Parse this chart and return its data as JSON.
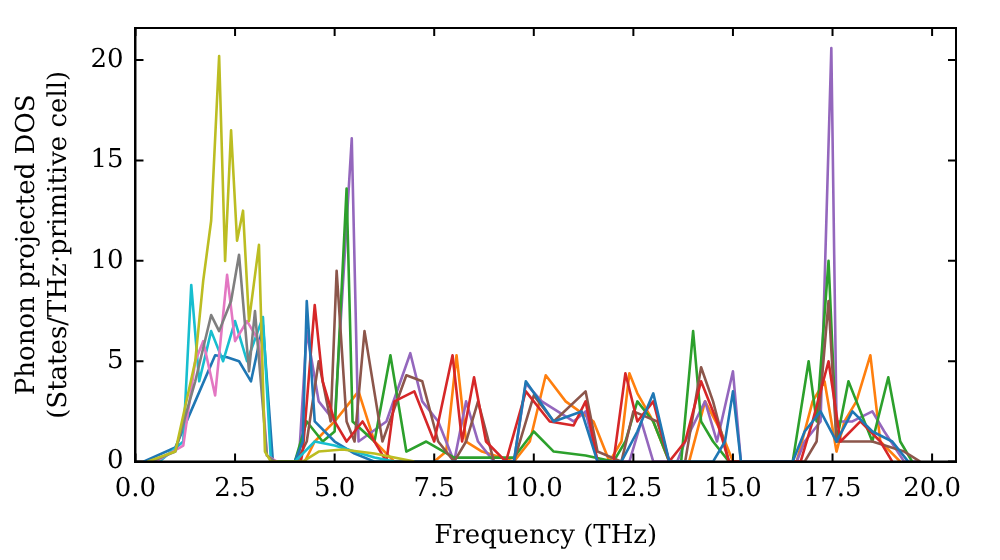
{
  "chart_data": {
    "type": "line",
    "xlabel": "Frequency (THz)",
    "ylabel": "Phonon projected DOS\n(States/THz·primitive cell)",
    "xlim": [
      0,
      20.6
    ],
    "ylim": [
      0,
      21.6
    ],
    "xticks": [
      {
        "value": 0,
        "label": "0.0"
      },
      {
        "value": 2.5,
        "label": "2.5"
      },
      {
        "value": 5,
        "label": "5.0"
      },
      {
        "value": 7.5,
        "label": "7.5"
      },
      {
        "value": 10,
        "label": "10.0"
      },
      {
        "value": 12.5,
        "label": "12.5"
      },
      {
        "value": 15,
        "label": "15.0"
      },
      {
        "value": 17.5,
        "label": "17.5"
      },
      {
        "value": 20,
        "label": "20.0"
      }
    ],
    "yticks": [
      0,
      5,
      10,
      15,
      20
    ],
    "grid": false,
    "legend": false,
    "series": [
      {
        "color": "#bcbd22",
        "x": [
          0.3,
          1.0,
          1.5,
          1.7,
          1.9,
          2.1,
          2.25,
          2.4,
          2.55,
          2.7,
          2.85,
          3.1,
          3.25,
          3.4,
          4.2,
          4.6,
          5.2,
          6.0,
          7.0
        ],
        "values": [
          0,
          0.5,
          5,
          9,
          12,
          20.2,
          10,
          16.5,
          11,
          12.5,
          7,
          10.8,
          0.5,
          0,
          0,
          0.5,
          0.6,
          0.4,
          0
        ]
      },
      {
        "color": "#7f7f7f",
        "x": [
          0.4,
          1.0,
          1.5,
          1.9,
          2.1,
          2.4,
          2.6,
          2.85,
          3.0,
          3.3,
          3.5
        ],
        "values": [
          0,
          0.5,
          4,
          7.3,
          6.5,
          8,
          10.3,
          4.5,
          7.5,
          0.3,
          0
        ]
      },
      {
        "color": "#e377c2",
        "x": [
          0.5,
          1.2,
          1.5,
          1.7,
          2.0,
          2.3,
          2.5,
          2.8,
          3.1,
          3.3,
          3.55
        ],
        "values": [
          0,
          0.8,
          5,
          6,
          3.3,
          9.3,
          6,
          7,
          6,
          0.3,
          0
        ]
      },
      {
        "color": "#17becf",
        "x": [
          0.6,
          1.2,
          1.4,
          1.6,
          1.9,
          2.2,
          2.5,
          2.8,
          3.2,
          3.4,
          4.0,
          4.5,
          5.0,
          5.5,
          6.0,
          6.5
        ],
        "values": [
          0,
          1,
          8.8,
          4,
          6.5,
          5,
          7,
          5,
          7.2,
          0,
          0,
          1,
          0.8,
          0.5,
          0.2,
          0
        ]
      },
      {
        "color": "#1f77b4",
        "x": [
          0.2,
          1.0,
          1.5,
          2.0,
          2.3,
          2.6,
          2.9,
          3.2,
          3.45,
          4.0,
          4.2,
          4.3,
          4.5,
          5.0,
          5.5,
          6.0,
          9.5,
          9.8,
          10.5,
          11.2,
          11.6,
          12.2,
          12.6,
          13.0,
          13.4,
          14.5,
          14.8,
          15.0,
          15.2,
          16.5,
          16.8,
          17.2,
          17.6,
          18.0,
          18.5,
          19.0,
          19.4
        ],
        "values": [
          0,
          0.7,
          3,
          5.3,
          5.2,
          5,
          4,
          6.8,
          0,
          0,
          1,
          8,
          2,
          1,
          0.4,
          0,
          0,
          4,
          2,
          2.5,
          0,
          0,
          1.5,
          3.4,
          0,
          0,
          1,
          3.5,
          0,
          0,
          1.5,
          2.5,
          1,
          2.5,
          1.5,
          1,
          0
        ]
      },
      {
        "color": "#d62728",
        "x": [
          4.15,
          4.2,
          4.5,
          4.7,
          5.0,
          5.3,
          5.7,
          6.0,
          6.3,
          6.5,
          7.0,
          7.5,
          7.96,
          8.2,
          8.5,
          8.8,
          9.3,
          9.8,
          10.4,
          11.0,
          11.3,
          11.6,
          12.0,
          12.3,
          12.6,
          13.0,
          13.4,
          13.8,
          14.2,
          14.6,
          14.9,
          16.7,
          17.0,
          17.4,
          17.7,
          18.2,
          18.7,
          19.0
        ],
        "values": [
          0,
          0.5,
          7.8,
          4,
          2,
          1,
          2,
          1,
          0,
          3,
          3.5,
          1,
          5.3,
          1,
          4.2,
          1,
          0,
          3.5,
          2,
          1.8,
          3,
          0,
          0,
          4.4,
          2,
          3,
          0,
          1,
          4,
          2,
          0,
          0,
          2,
          5,
          1,
          2,
          1,
          0
        ]
      },
      {
        "color": "#8c564b",
        "x": [
          4.05,
          4.3,
          4.6,
          4.9,
          5.05,
          5.3,
          5.5,
          5.75,
          6.2,
          6.8,
          7.2,
          7.6,
          8.0,
          8.3,
          8.6,
          9.0,
          9.5,
          10.0,
          10.5,
          11.3,
          11.6,
          12.2,
          12.5,
          13.1,
          13.4,
          13.8,
          14.2,
          14.5,
          14.9,
          16.8,
          17.1,
          17.4,
          17.6,
          18.5,
          19.3,
          19.7
        ],
        "values": [
          0,
          1,
          5,
          2,
          9.5,
          2,
          1,
          6.5,
          1,
          4.3,
          4,
          1,
          0,
          1,
          3,
          0,
          0,
          3.3,
          2,
          3.5,
          0.5,
          0,
          2.5,
          2,
          0,
          0,
          4.7,
          3,
          0,
          0,
          1,
          8,
          1,
          1,
          0.5,
          0
        ]
      },
      {
        "color": "#2ca02c",
        "x": [
          4.0,
          4.3,
          4.7,
          5.0,
          5.3,
          5.45,
          6.0,
          6.4,
          6.8,
          7.3,
          8.0,
          9.5,
          10.0,
          10.5,
          11.3,
          12.0,
          12.3,
          12.6,
          13.0,
          13.4,
          13.7,
          14.0,
          14.2,
          14.5,
          14.9,
          16.5,
          16.9,
          17.1,
          17.4,
          17.6,
          17.9,
          18.1,
          18.5,
          18.9,
          19.2,
          19.5
        ],
        "values": [
          0,
          2,
          1,
          1.5,
          13.6,
          2,
          1,
          5.3,
          0.5,
          1,
          0.2,
          0.2,
          1.5,
          0.5,
          0.3,
          0,
          1,
          3,
          2,
          0,
          0,
          6.5,
          2,
          1,
          0,
          0,
          5,
          2,
          10,
          1,
          4,
          3,
          1,
          4.2,
          1,
          0
        ]
      },
      {
        "color": "#9467bd",
        "x": [
          4.1,
          4.3,
          4.6,
          5.0,
          5.43,
          5.6,
          6.3,
          6.9,
          7.2,
          7.6,
          8.0,
          8.3,
          8.6,
          9.0,
          9.5,
          9.8,
          10.2,
          11.0,
          11.3,
          11.6,
          12.4,
          12.7,
          13.0,
          13.6,
          13.8,
          14.3,
          14.6,
          15.0,
          15.2,
          16.6,
          16.8,
          17.2,
          17.47,
          17.6,
          18.0,
          18.5,
          18.8,
          19.3,
          19.6
        ],
        "values": [
          0,
          6.5,
          3,
          2,
          16.1,
          1,
          2,
          5.4,
          3,
          2,
          0,
          3,
          1,
          0,
          0,
          3.9,
          3,
          2,
          2.5,
          0,
          0,
          2,
          0,
          0,
          1,
          3,
          1,
          4.5,
          0,
          0,
          1,
          2,
          20.6,
          2,
          2,
          2.5,
          1.5,
          0,
          0
        ]
      },
      {
        "color": "#ff7f0e",
        "x": [
          4.25,
          4.5,
          5.0,
          5.6,
          6.0,
          6.5,
          7.5,
          7.8,
          8.06,
          8.3,
          8.7,
          9.5,
          9.9,
          10.3,
          10.8,
          11.5,
          11.9,
          12.2,
          12.4,
          12.6,
          13.0,
          13.4,
          13.9,
          14.3,
          14.7,
          15.0,
          16.6,
          17.0,
          17.3,
          17.6,
          17.8,
          18.1,
          18.45,
          18.7,
          19.2
        ],
        "values": [
          0,
          1,
          2,
          3.5,
          1,
          0,
          0,
          0.5,
          5.3,
          1,
          0.5,
          0,
          1,
          4.3,
          3,
          2,
          0,
          1,
          4.4,
          3.4,
          2,
          0,
          0,
          3,
          1.5,
          0,
          0,
          3,
          4,
          0.5,
          2,
          3,
          5.3,
          1,
          0
        ]
      }
    ]
  }
}
